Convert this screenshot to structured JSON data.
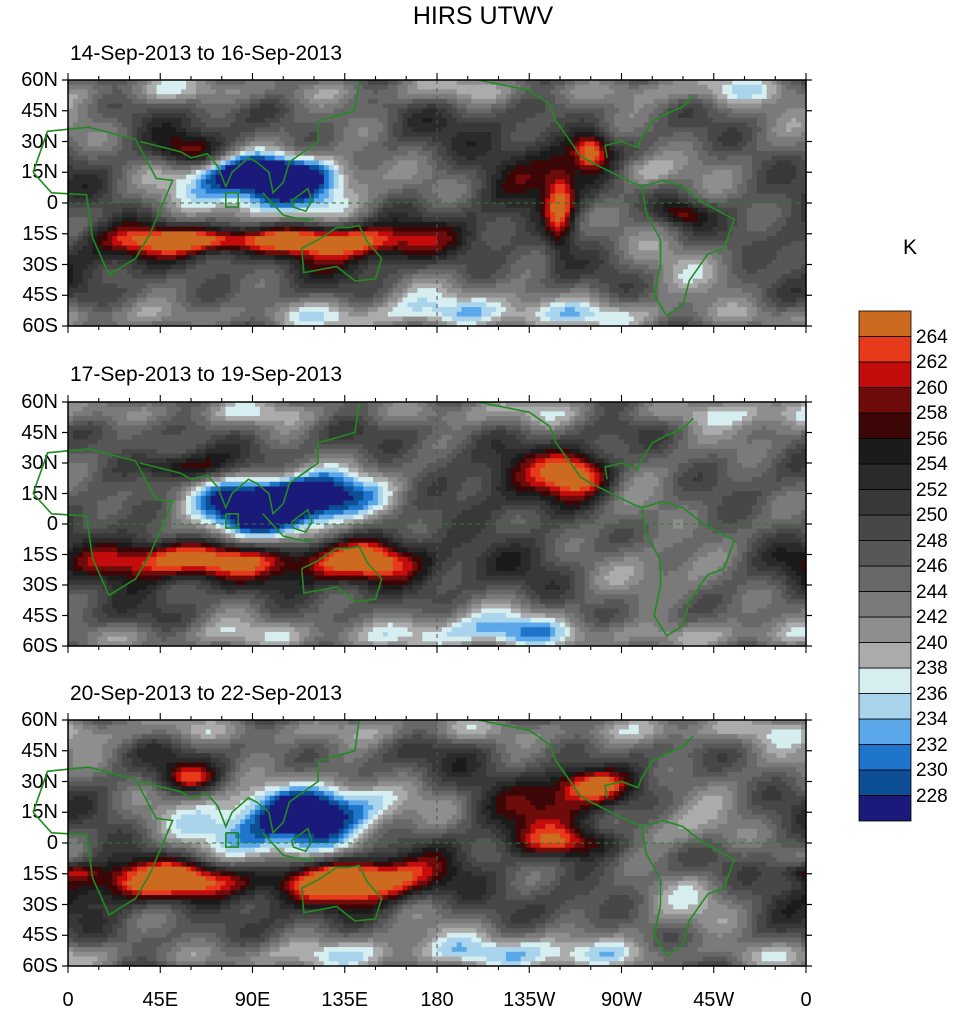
{
  "chart_data": {
    "type": "heatmap",
    "title": "HIRS UTWV",
    "units": "K",
    "panels": [
      {
        "title": "14-Sep-2013 to 16-Sep-2013"
      },
      {
        "title": "17-Sep-2013 to 19-Sep-2013"
      },
      {
        "title": "20-Sep-2013 to 22-Sep-2013"
      }
    ],
    "lat_ticks": [
      "60N",
      "45N",
      "30N",
      "15N",
      "0",
      "15S",
      "30S",
      "45S",
      "60S"
    ],
    "lat_values": [
      60,
      45,
      30,
      15,
      0,
      -15,
      -30,
      -45,
      -60
    ],
    "lon_ticks": [
      "0",
      "45E",
      "90E",
      "135E",
      "180",
      "135W",
      "90W",
      "45W",
      "0"
    ],
    "lon_values": [
      0,
      45,
      90,
      135,
      180,
      225,
      270,
      315,
      360
    ],
    "ylim": [
      -60,
      60
    ],
    "xlim": [
      0,
      360
    ],
    "colorbar": {
      "levels": [
        "228",
        "230",
        "232",
        "234",
        "236",
        "238",
        "240",
        "242",
        "244",
        "246",
        "248",
        "250",
        "252",
        "254",
        "256",
        "258",
        "260",
        "262",
        "264"
      ],
      "colors": [
        "#1a1a7a",
        "#0c4f94",
        "#1f74cc",
        "#5aa8ea",
        "#a9d4ec",
        "#d6eef0",
        "#ababab",
        "#8e8e8e",
        "#7a7a7a",
        "#686868",
        "#575757",
        "#474747",
        "#383838",
        "#2a2a2a",
        "#1b1b1b",
        "#3d0606",
        "#6e0b0b",
        "#c40c0c",
        "#e63a1a",
        "#cc6a20"
      ]
    }
  }
}
